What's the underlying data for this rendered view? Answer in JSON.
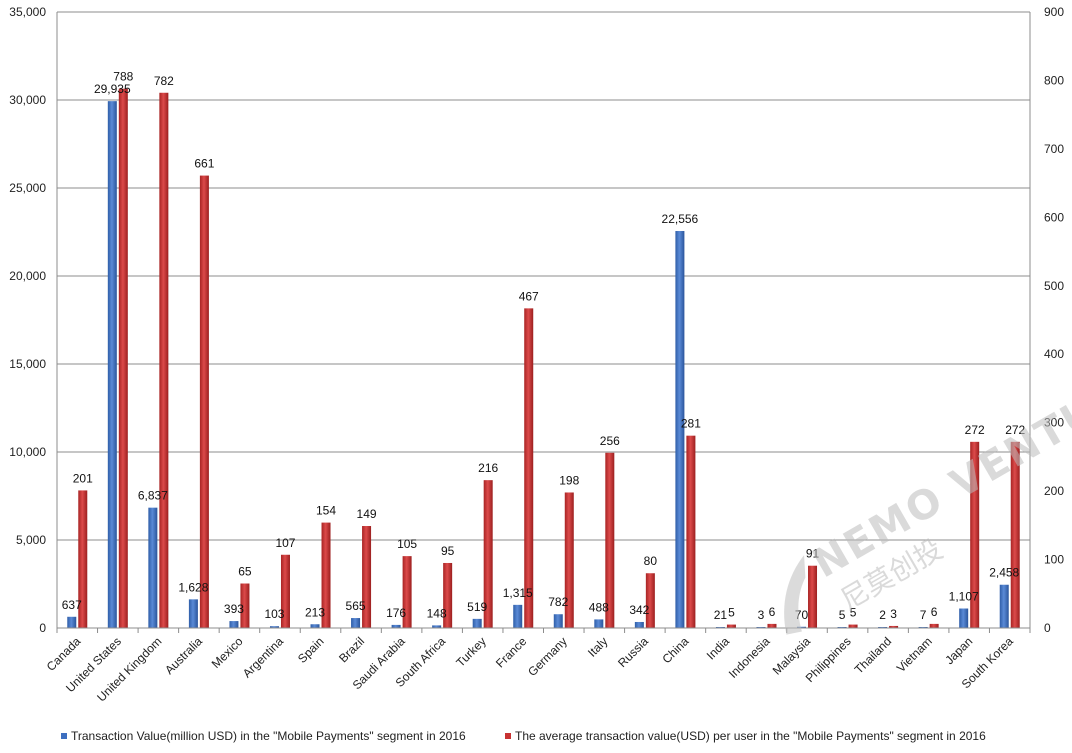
{
  "chart_data": {
    "type": "bar",
    "categories": [
      "Canada",
      "United States",
      "United Kingdom",
      "Australia",
      "Mexico",
      "Argentina",
      "Spain",
      "Brazil",
      "Saudi Arabia",
      "South Africa",
      "Turkey",
      "France",
      "Germany",
      "Italy",
      "Russia",
      "China",
      "India",
      "Indonesia",
      "Malaysia",
      "Philippines",
      "Thailand",
      "Vietnam",
      "Japan",
      "South Korea"
    ],
    "series": [
      {
        "name": "Transaction Value(million USD) in the \"Mobile Payments\" segment in 2016",
        "axis": "left",
        "color": "#3d6fc0",
        "values": [
          637,
          29935,
          6837,
          1628,
          393,
          103,
          213,
          565,
          176,
          148,
          519,
          1315,
          782,
          488,
          342,
          22556,
          21,
          3,
          70,
          5,
          2,
          7,
          1107,
          2458
        ],
        "labels": [
          "637",
          "29,935",
          "6,837",
          "1,628",
          "393",
          "103",
          "213",
          "565",
          "176",
          "148",
          "519",
          "1,315",
          "782",
          "488",
          "342",
          "22,556",
          "21",
          "3",
          "70",
          "5",
          "2",
          "7",
          "1,107",
          "2,458"
        ]
      },
      {
        "name": "The average transaction value(USD) per user in the \"Mobile Payments\" segment in 2016",
        "axis": "right",
        "color": "#c83232",
        "values": [
          201,
          788,
          782,
          661,
          65,
          107,
          154,
          149,
          105,
          95,
          216,
          467,
          198,
          256,
          80,
          281,
          5,
          6,
          91,
          5,
          3,
          6,
          272,
          272
        ],
        "labels": [
          "201",
          "788",
          "782",
          "661",
          "65",
          "107",
          "154",
          "149",
          "105",
          "95",
          "216",
          "467",
          "198",
          "256",
          "80",
          "281",
          "5",
          "6",
          "91",
          "5",
          "3",
          "6",
          "272",
          "272"
        ]
      }
    ],
    "y_left": {
      "min": 0,
      "max": 35000,
      "step": 5000,
      "ticks": [
        "0",
        "5,000",
        "10,000",
        "15,000",
        "20,000",
        "25,000",
        "30,000",
        "35,000"
      ]
    },
    "y_right": {
      "min": 0,
      "max": 900,
      "step": 100,
      "ticks": [
        "0",
        "100",
        "200",
        "300",
        "400",
        "500",
        "600",
        "700",
        "800",
        "900"
      ]
    },
    "grid": true,
    "legend_position": "bottom"
  },
  "watermark": {
    "text": "NEMO VENTURES",
    "sub": "尼莫创投"
  }
}
